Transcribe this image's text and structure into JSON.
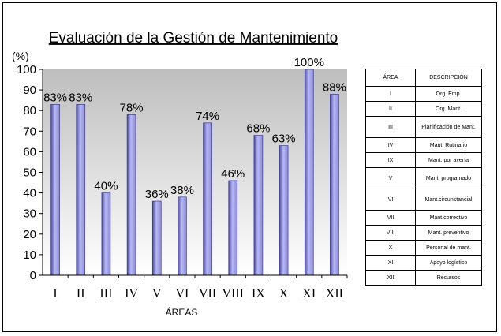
{
  "chart_data": {
    "type": "bar",
    "title": "Evaluación de la Gestión de Mantenimiento",
    "xlabel": "ÁREAS",
    "ylabel": "(%)",
    "ylim": [
      0,
      100
    ],
    "yticks": [
      "0",
      "10",
      "20",
      "30",
      "40",
      "50",
      "60",
      "70",
      "80",
      "90",
      "100"
    ],
    "grid": false,
    "categories": [
      "I",
      "II",
      "III",
      "IV",
      "V",
      "VI",
      "VII",
      "VIII",
      "IX",
      "X",
      "XI",
      "XII"
    ],
    "values": [
      83,
      83,
      40,
      78,
      36,
      38,
      74,
      46,
      68,
      63,
      100,
      88
    ],
    "data_labels": [
      "83%",
      "83%",
      "40%",
      "78%",
      "36%",
      "38%",
      "74%",
      "46%",
      "68%",
      "63%",
      "100%",
      "88%"
    ],
    "colors": {
      "bar": "#8A8ADE",
      "bar_dark": "#4A4AA8",
      "bar_light": "#B8B8F0",
      "plot_top": "#BEBEBE",
      "plot_bottom": "#FFFFFF"
    }
  },
  "legend_table": {
    "headers": [
      "ÁREA",
      "DESCRIPCIÓN"
    ],
    "rows": [
      [
        "I",
        "Org. Emp."
      ],
      [
        "II",
        "Org. Mant."
      ],
      [
        "III",
        "Planificación de Mant."
      ],
      [
        "IV",
        "Mant. Rutinario"
      ],
      [
        "IX",
        "Mant. por avería"
      ],
      [
        "V",
        "Mant. programado"
      ],
      [
        "VI",
        "Mant.circunstancial"
      ],
      [
        "VII",
        "Mant.correctivo"
      ],
      [
        "VIII",
        "Mant. preventivo"
      ],
      [
        "X",
        "Personal de mant."
      ],
      [
        "XI",
        "Apoyo logístico"
      ],
      [
        "XII",
        "Recursos"
      ]
    ]
  }
}
